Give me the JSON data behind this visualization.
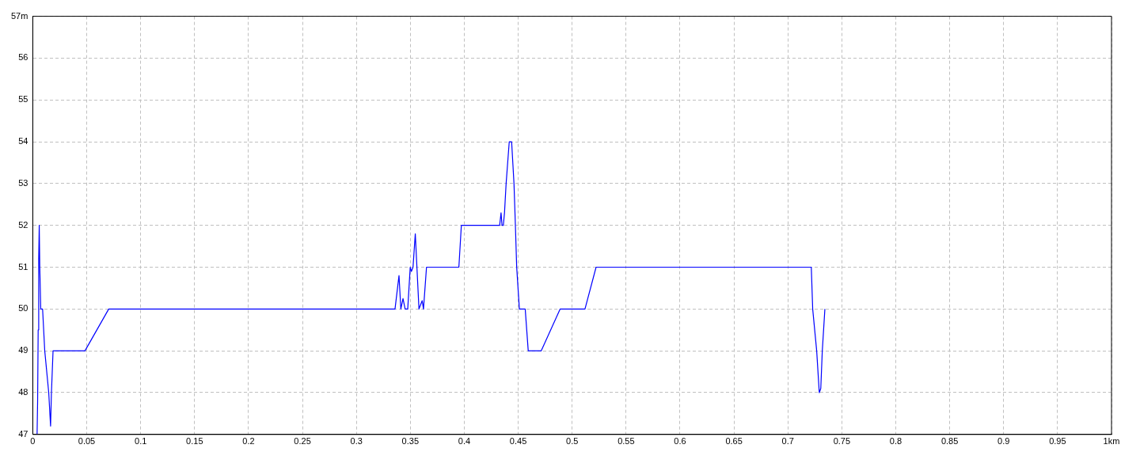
{
  "chart_data": {
    "type": "line",
    "x": [
      0.004,
      0.0045,
      0.005,
      0.0055,
      0.006,
      0.0065,
      0.0074,
      0.0091,
      0.0111,
      0.0148,
      0.0165,
      0.0173,
      0.0188,
      0.0484,
      0.0704,
      0.3358,
      0.3395,
      0.3412,
      0.3432,
      0.3452,
      0.3476,
      0.3499,
      0.351,
      0.3525,
      0.3546,
      0.358,
      0.361,
      0.3622,
      0.365,
      0.395,
      0.3973,
      0.4328,
      0.4341,
      0.435,
      0.4362,
      0.4373,
      0.4388,
      0.4417,
      0.4439,
      0.4461,
      0.4474,
      0.4486,
      0.4511,
      0.4565,
      0.4593,
      0.4713,
      0.4889,
      0.5119,
      0.5222,
      0.7217,
      0.723,
      0.7267,
      0.7291,
      0.7305,
      0.7319,
      0.7343
    ],
    "series": [
      {
        "color": "#0000ff",
        "values": [
          47,
          47.8,
          49.5,
          51.2,
          52,
          51,
          50,
          50,
          49,
          48,
          47.2,
          48,
          49,
          49,
          50,
          50,
          50.8,
          50,
          50.25,
          50,
          50,
          51,
          50.9,
          51,
          51.8,
          50,
          50.2,
          50,
          51,
          51,
          52,
          52,
          52.3,
          52,
          52,
          52.3,
          53,
          54,
          54,
          53,
          52,
          51,
          50,
          50,
          49,
          49,
          50,
          50,
          51,
          51,
          50,
          49,
          48,
          48.1,
          49,
          50
        ]
      }
    ],
    "xlim": [
      0,
      1
    ],
    "xticks": [
      0,
      0.05,
      0.1,
      0.15,
      0.2,
      0.25,
      0.3,
      0.35,
      0.4,
      0.45,
      0.5,
      0.55,
      0.6,
      0.65,
      0.7,
      0.75,
      0.8,
      0.85,
      0.9,
      0.95,
      {
        "value": 1,
        "label": "1km"
      }
    ],
    "ylim": [
      47,
      57
    ],
    "yticks": [
      47,
      48,
      49,
      50,
      51,
      52,
      53,
      54,
      55,
      56,
      {
        "value": 57,
        "label": "57m"
      }
    ],
    "grid": true,
    "legend": false,
    "marker": "none",
    "line_style": "solid"
  }
}
